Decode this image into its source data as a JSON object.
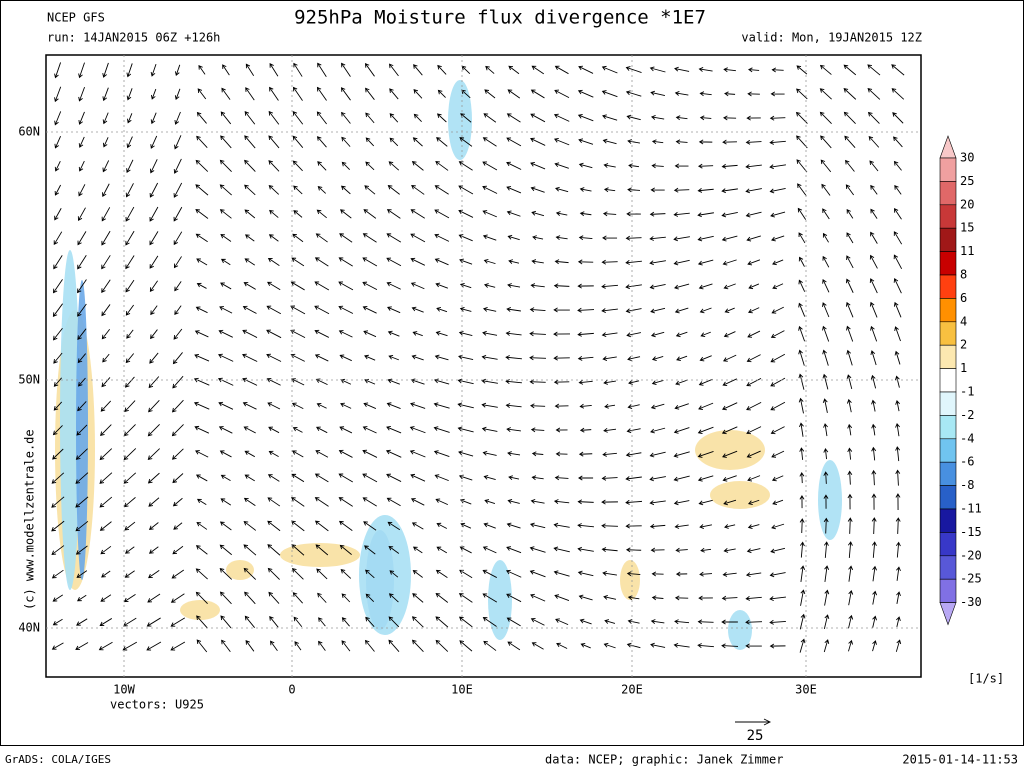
{
  "header": {
    "model": "NCEP GFS",
    "title": "925hPa Moisture flux divergence *1E7",
    "run": "run: 14JAN2015 06Z +126h",
    "valid": "valid: Mon, 19JAN2015 12Z"
  },
  "map": {
    "lat_labels": [
      "60N",
      "50N",
      "40N"
    ],
    "lon_labels": [
      "10W",
      "0",
      "10E",
      "20E",
      "30E"
    ],
    "vectors": "vectors: U925",
    "vector_scale": "25",
    "watermark": "(c) www.modellzentrale.de"
  },
  "colorbar": {
    "levels": [
      30,
      25,
      20,
      15,
      11,
      8,
      6,
      4,
      2,
      1,
      -1,
      -2,
      -4,
      -6,
      -8,
      -11,
      -15,
      -20,
      -25,
      -30
    ],
    "colors": [
      "#f8c8c8",
      "#f0a0a0",
      "#e06868",
      "#c83838",
      "#a01818",
      "#c80000",
      "#ff4010",
      "#ff9000",
      "#f8c040",
      "#fce8b0",
      "#ffffff",
      "#e0f6fc",
      "#a8e8f4",
      "#70c4f0",
      "#4890e0",
      "#2860c8",
      "#1818a0",
      "#3838c8",
      "#5858d8",
      "#8070e4",
      "#b8a8f4"
    ],
    "unit": "[1/s]"
  },
  "footer": {
    "software": "GrADS: COLA/IGES",
    "credit": "data: NCEP; graphic: Janek Zimmer",
    "timestamp": "2015-01-14-11:53"
  }
}
